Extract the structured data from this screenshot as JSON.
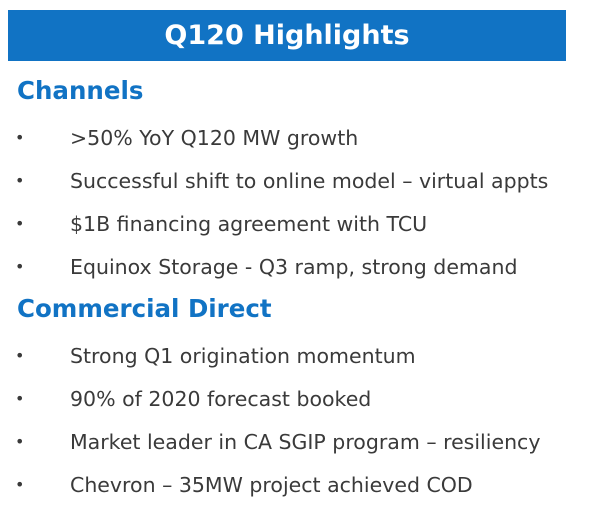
{
  "banner": {
    "title": "Q120 Highlights"
  },
  "sections": [
    {
      "heading": "Channels",
      "items": [
        ">50% YoY Q120 MW growth",
        "Successful shift to online model – virtual appts",
        "$1B financing agreement with TCU",
        "Equinox Storage - Q3 ramp, strong demand"
      ]
    },
    {
      "heading": "Commercial Direct",
      "items": [
        "Strong Q1 origination momentum",
        "90% of 2020 forecast booked",
        "Market leader in CA SGIP program – resiliency",
        "Chevron – 35MW project achieved COD"
      ]
    }
  ],
  "bullet_glyph": "•",
  "colors": {
    "accent": "#1173c4",
    "body_text": "#3a3a3a",
    "background": "#ffffff"
  }
}
